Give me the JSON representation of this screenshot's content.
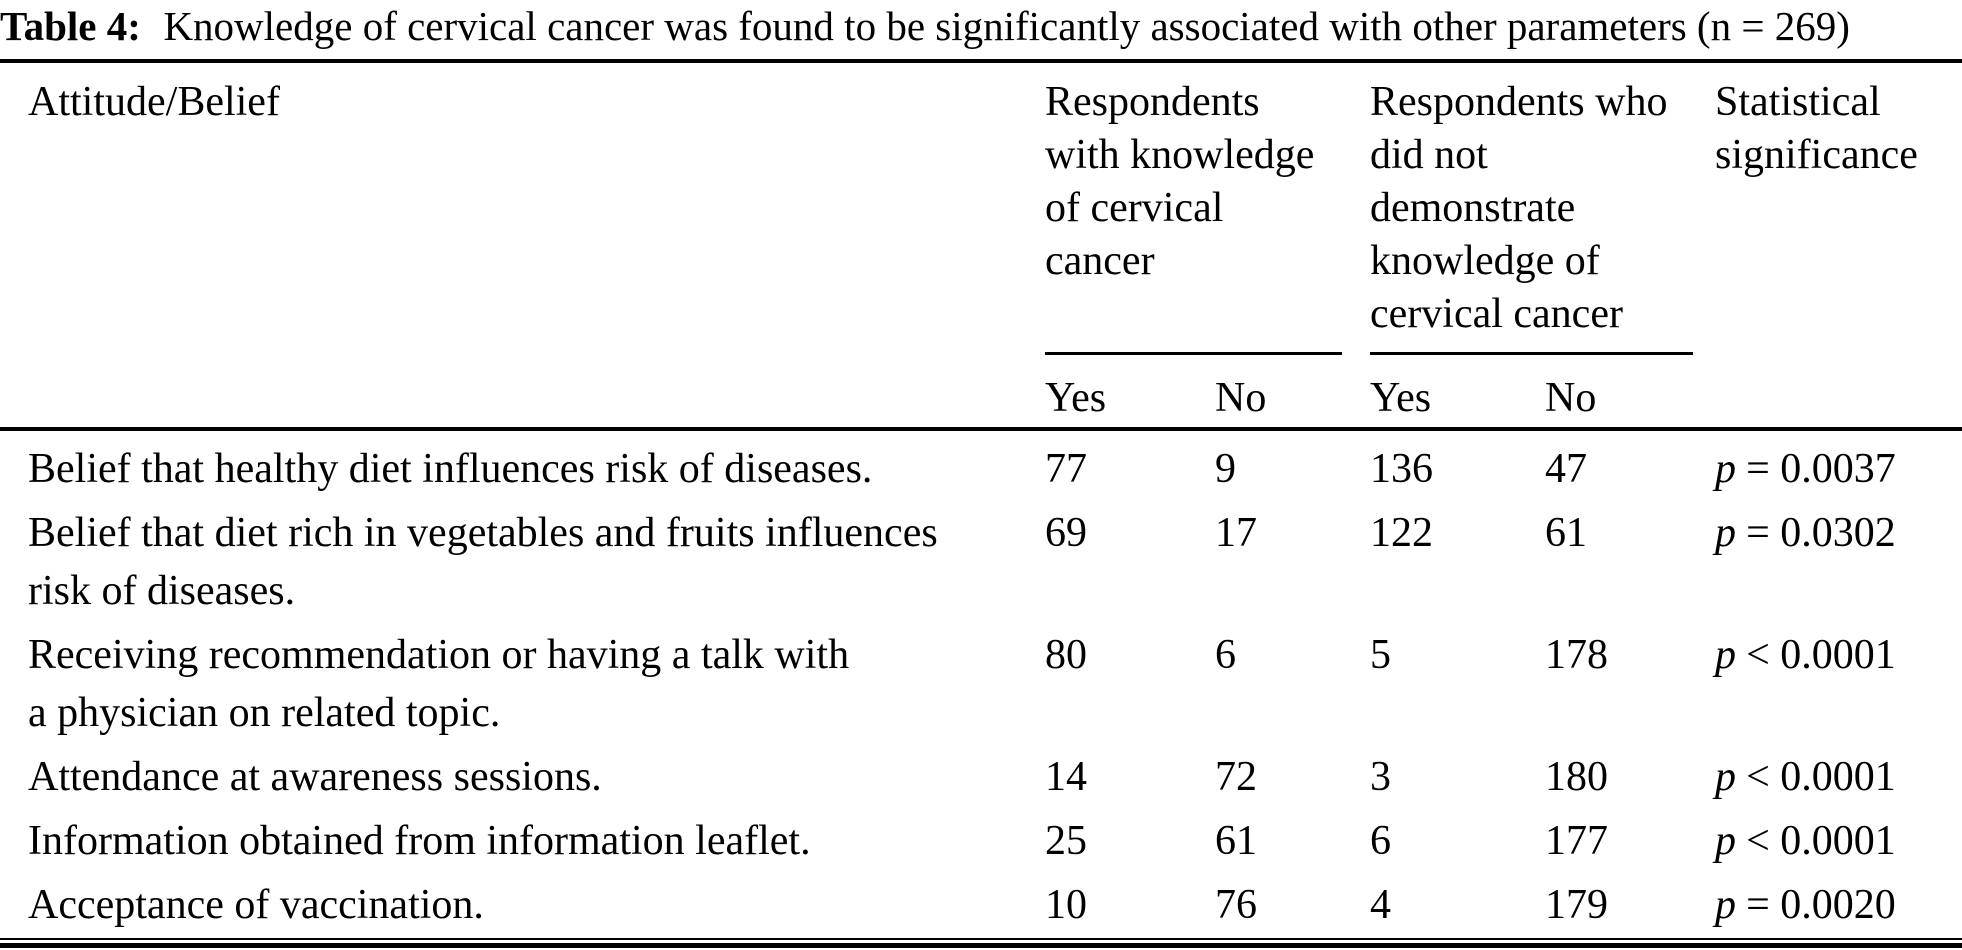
{
  "title": {
    "label": "Table 4:",
    "text": "Knowledge of cervical cancer was found to be significantly associated with other parameters (n = 269)"
  },
  "table": {
    "p_symbol": "p",
    "header": {
      "attitude": "Attitude/Belief",
      "group1_lines": [
        "Respondents",
        "with knowledge",
        "of cervical",
        "cancer"
      ],
      "group2_lines": [
        "Respondents who",
        "did not",
        "demonstrate",
        "knowledge of",
        "cervical cancer"
      ],
      "stat_lines": [
        "Statistical",
        "significance"
      ],
      "sub": [
        "Yes",
        "No",
        "Yes",
        "No"
      ]
    },
    "rows": [
      {
        "label_lines": [
          "Belief that healthy diet influences risk of diseases."
        ],
        "k_yes": "77",
        "k_no": "9",
        "nk_yes": "136",
        "nk_no": "47",
        "sig": "= 0.0037"
      },
      {
        "label_lines": [
          "Belief that diet rich in vegetables and fruits influences",
          "risk of diseases."
        ],
        "k_yes": "69",
        "k_no": "17",
        "nk_yes": "122",
        "nk_no": "61",
        "sig": "= 0.0302"
      },
      {
        "label_lines": [
          "Receiving recommendation or having a talk with",
          "a physician on related topic."
        ],
        "k_yes": "80",
        "k_no": "6",
        "nk_yes": "5",
        "nk_no": "178",
        "sig": "< 0.0001"
      },
      {
        "label_lines": [
          "Attendance at awareness sessions."
        ],
        "k_yes": "14",
        "k_no": "72",
        "nk_yes": "3",
        "nk_no": "180",
        "sig": "< 0.0001"
      },
      {
        "label_lines": [
          "Information obtained from information leaflet."
        ],
        "k_yes": "25",
        "k_no": "61",
        "nk_yes": "6",
        "nk_no": "177",
        "sig": "< 0.0001"
      },
      {
        "label_lines": [
          "Acceptance of vaccination."
        ],
        "k_yes": "10",
        "k_no": "76",
        "nk_yes": "4",
        "nk_no": "179",
        "sig": "= 0.0020"
      }
    ]
  },
  "colors": {
    "text": "#000000",
    "background": "#ffffff"
  }
}
